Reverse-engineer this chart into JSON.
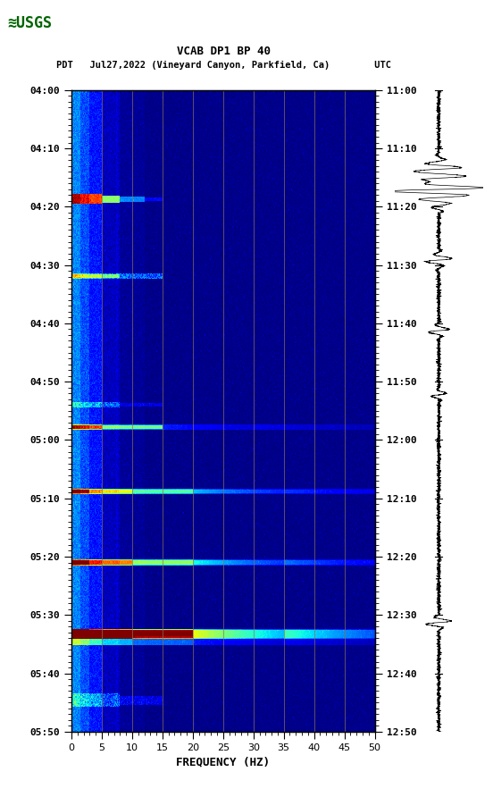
{
  "title_line1": "VCAB DP1 BP 40",
  "title_line2": "PDT   Jul27,2022 (Vineyard Canyon, Parkfield, Ca)        UTC",
  "xlabel": "FREQUENCY (HZ)",
  "left_ticks_pdt": [
    "04:00",
    "04:10",
    "04:20",
    "04:30",
    "04:40",
    "04:50",
    "05:00",
    "05:10",
    "05:20",
    "05:30",
    "05:40",
    "05:50"
  ],
  "right_ticks_utc": [
    "11:00",
    "11:10",
    "11:20",
    "11:30",
    "11:40",
    "11:50",
    "12:00",
    "12:10",
    "12:20",
    "12:30",
    "12:40",
    "12:50"
  ],
  "freq_ticks": [
    0,
    5,
    10,
    15,
    20,
    25,
    30,
    35,
    40,
    45,
    50
  ],
  "vertical_lines_freq": [
    5,
    10,
    15,
    20,
    25,
    30,
    35,
    40,
    45
  ],
  "freq_min": 0,
  "freq_max": 50,
  "fig_bg": "#ffffff",
  "n_time": 600,
  "n_freq": 500
}
